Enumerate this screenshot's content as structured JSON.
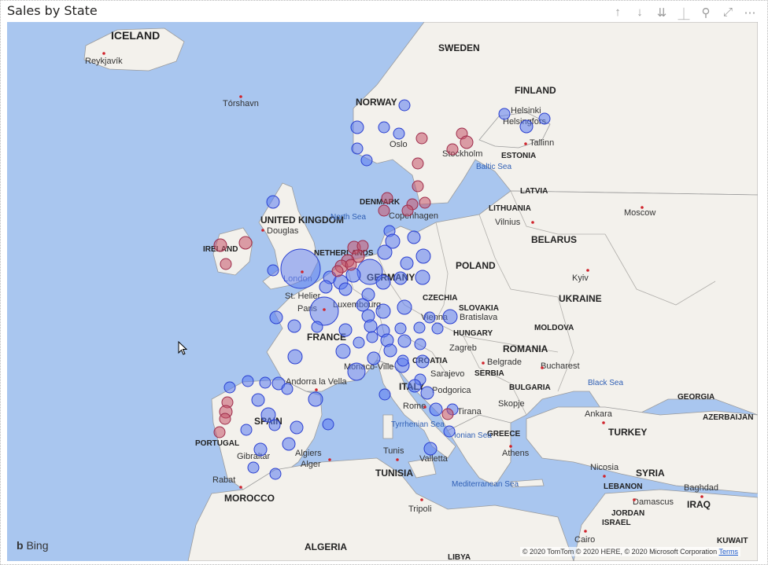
{
  "visual": {
    "title": "Sales by State",
    "toolbar": [
      "↑",
      "↓",
      "⇊",
      "⏊",
      "⚲",
      "⤢",
      "⋯"
    ]
  },
  "map": {
    "provider": "Bing",
    "attribution": "© 2020 TomTom © 2020 HERE, © 2020 Microsoft Corporation",
    "terms": "Terms",
    "colors": {
      "water": "#a9c6ef",
      "land": "#f3f1ec",
      "border": "#9b9b9b",
      "bubble_blue": "#5a7af0",
      "bubble_red": "#c4546a"
    },
    "countries": [
      "ICELAND",
      "SWEDEN",
      "FINLAND",
      "NORWAY",
      "ESTONIA",
      "LATVIA",
      "LITHUANIA",
      "DENMARK",
      "UNITED KINGDOM",
      "IRELAND",
      "NETHERLANDS",
      "BELARUS",
      "POLAND",
      "GERMANY",
      "UKRAINE",
      "CZECHIA",
      "SLOVAKIA",
      "MOLDOVA",
      "HUNGARY",
      "FRANCE",
      "ROMANIA",
      "CROATIA",
      "SERBIA",
      "BULGARIA",
      "ITALY",
      "SPAIN",
      "PORTUGAL",
      "GREECE",
      "TURKEY",
      "GEORGIA",
      "AZERBAIJAN",
      "MOROCCO",
      "TUNISIA",
      "SYRIA",
      "LEBANON",
      "JORDAN",
      "ISRAEL",
      "IRAQ",
      "ALGERIA",
      "LIBYA",
      "KUWAIT"
    ],
    "cities": [
      "Reykjavík",
      "Tórshavn",
      "Helsinki",
      "Helsingfors",
      "Tallinn",
      "Stockholm",
      "Oslo",
      "Copenhagen",
      "Douglas",
      "Vilnius",
      "Moscow",
      "London",
      "Kyiv",
      "St. Helier",
      "Luxembourg",
      "Paris",
      "Vienna",
      "Bratislava",
      "Zagreb",
      "Belgrade",
      "Bucharest",
      "Andorra la Vella",
      "Monaco-Ville",
      "Sarajevo",
      "Podgorica",
      "Skopje",
      "Tirana",
      "Rome",
      "Ankara",
      "Athens",
      "Algiers",
      "Alger",
      "Gibraltar",
      "Tunis",
      "Valletta",
      "Rabat",
      "Nicosia",
      "Damascus",
      "Baghdad",
      "Tripoli",
      "Cairo"
    ],
    "seas": [
      "North Sea",
      "Baltic Sea",
      "Black Sea",
      "Tyrrhenian Sea",
      "Ionian Sea",
      "Mediterranean Sea"
    ]
  }
}
